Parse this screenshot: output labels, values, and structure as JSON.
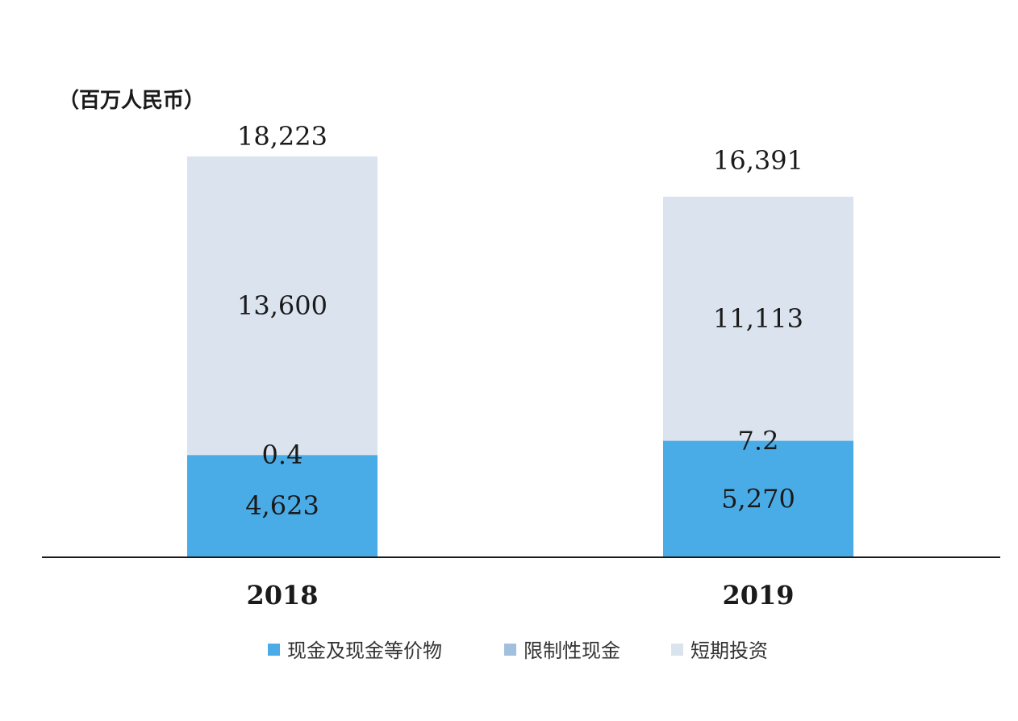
{
  "chart_data": {
    "type": "bar",
    "stacked": true,
    "unit_label": "（百万人民币）",
    "categories": [
      "2018",
      "2019"
    ],
    "series": [
      {
        "name": "现金及现金等价物",
        "values": [
          4623,
          5270
        ],
        "labels": [
          "4,623",
          "5,270"
        ],
        "color": "#4aace6"
      },
      {
        "name": "限制性现金",
        "values": [
          0.4,
          7.2
        ],
        "labels": [
          "0.4",
          "7.2"
        ],
        "color": "#a3bfde"
      },
      {
        "name": "短期投资",
        "values": [
          13600,
          11113
        ],
        "labels": [
          "13,600",
          "11,113"
        ],
        "color": "#dbe3ef"
      }
    ],
    "totals": [
      "18,223",
      "16,391"
    ],
    "legend_position": "bottom",
    "grid": false
  }
}
